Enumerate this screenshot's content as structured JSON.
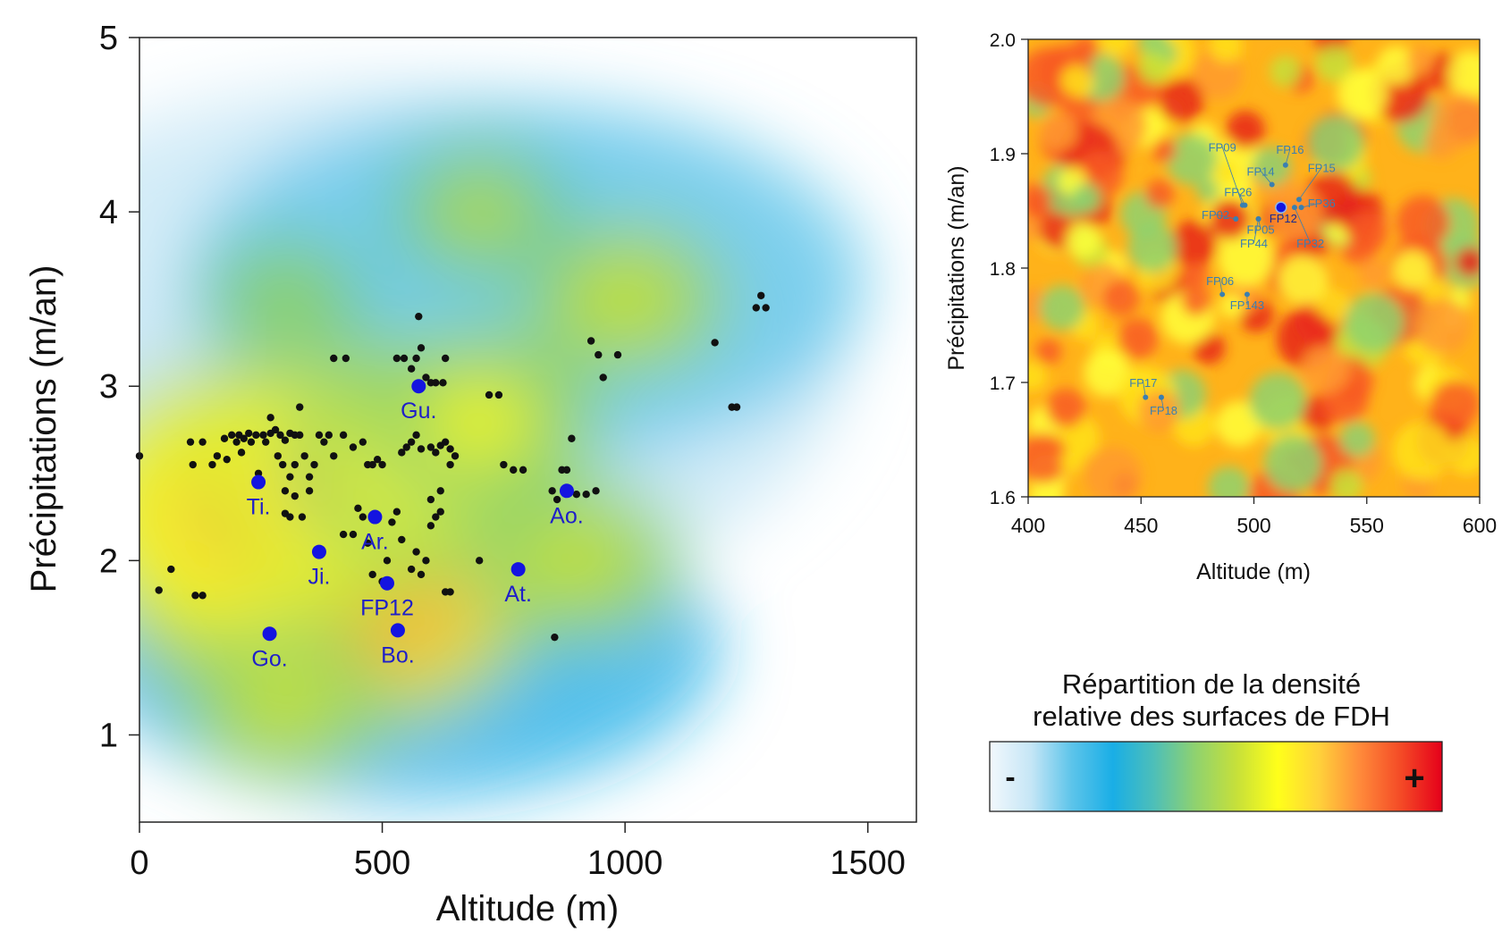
{
  "colors": {
    "density_scale": [
      "#f2f8fc",
      "#c6e6f6",
      "#5cc4ea",
      "#19aee6",
      "#4ebfb8",
      "#8fd26f",
      "#c6e03a",
      "#ffff1a",
      "#ffd23a",
      "#ff8a3a",
      "#f44a26",
      "#e5001a"
    ],
    "point_black": "#111111",
    "point_blue": "#1414e0",
    "label_blue": "#1f1fc8",
    "fp_label": "#3a7fb0",
    "fp12_label": "#1a2a90"
  },
  "legend": {
    "title_line1": "Répartition de la densité",
    "title_line2": "relative des surfaces de FDH",
    "min_label": "-",
    "max_label": "+"
  },
  "chart_data": [
    {
      "type": "heatmap",
      "panel": "main",
      "title": "",
      "xlabel": "Altitude (m)",
      "ylabel": "Précipitations (m/an)",
      "xlim": [
        0,
        1600
      ],
      "ylim": [
        0.5,
        5
      ],
      "xticks": [
        0,
        500,
        1000,
        1500
      ],
      "yticks": [
        1,
        2,
        3,
        4,
        5
      ],
      "density_hotspots": [
        {
          "x": 400,
          "y": 2.0,
          "weight": 1.0
        },
        {
          "x": 250,
          "y": 2.3,
          "weight": 0.8
        },
        {
          "x": 450,
          "y": 2.5,
          "weight": 0.7
        },
        {
          "x": 600,
          "y": 2.6,
          "weight": 0.6
        },
        {
          "x": 700,
          "y": 2.8,
          "weight": 0.4
        },
        {
          "x": 900,
          "y": 2.0,
          "weight": 0.3
        },
        {
          "x": 1000,
          "y": 3.5,
          "weight": 0.3
        },
        {
          "x": 700,
          "y": 4.0,
          "weight": 0.25
        },
        {
          "x": 300,
          "y": 3.5,
          "weight": 0.2
        },
        {
          "x": 300,
          "y": 1.2,
          "weight": 0.3
        }
      ],
      "sites": [
        {
          "label": "Gu.",
          "x": 575,
          "y": 3.0
        },
        {
          "label": "Ti.",
          "x": 245,
          "y": 2.45
        },
        {
          "label": "Ar.",
          "x": 485,
          "y": 2.25
        },
        {
          "label": "Ao.",
          "x": 880,
          "y": 2.4
        },
        {
          "label": "Ji.",
          "x": 370,
          "y": 2.05
        },
        {
          "label": "FP12",
          "x": 510,
          "y": 1.87
        },
        {
          "label": "At.",
          "x": 780,
          "y": 1.95
        },
        {
          "label": "Go.",
          "x": 268,
          "y": 1.58
        },
        {
          "label": "Bo.",
          "x": 532,
          "y": 1.6
        }
      ],
      "stations": [
        [
          0,
          2.6
        ],
        [
          40,
          1.83
        ],
        [
          65,
          1.95
        ],
        [
          105,
          2.68
        ],
        [
          110,
          2.55
        ],
        [
          115,
          1.8
        ],
        [
          130,
          1.8
        ],
        [
          130,
          2.68
        ],
        [
          150,
          2.55
        ],
        [
          160,
          2.6
        ],
        [
          175,
          2.7
        ],
        [
          180,
          2.58
        ],
        [
          190,
          2.72
        ],
        [
          200,
          2.68
        ],
        [
          205,
          2.72
        ],
        [
          210,
          2.62
        ],
        [
          215,
          2.7
        ],
        [
          225,
          2.73
        ],
        [
          230,
          2.68
        ],
        [
          240,
          2.72
        ],
        [
          245,
          2.5
        ],
        [
          255,
          2.72
        ],
        [
          260,
          2.68
        ],
        [
          270,
          2.73
        ],
        [
          280,
          2.75
        ],
        [
          290,
          2.72
        ],
        [
          300,
          2.69
        ],
        [
          310,
          2.73
        ],
        [
          320,
          2.72
        ],
        [
          330,
          2.72
        ],
        [
          270,
          2.82
        ],
        [
          285,
          2.6
        ],
        [
          295,
          2.55
        ],
        [
          300,
          2.4
        ],
        [
          310,
          2.48
        ],
        [
          320,
          2.55
        ],
        [
          330,
          2.88
        ],
        [
          340,
          2.6
        ],
        [
          350,
          2.48
        ],
        [
          360,
          2.55
        ],
        [
          300,
          2.27
        ],
        [
          310,
          2.25
        ],
        [
          320,
          2.37
        ],
        [
          335,
          2.25
        ],
        [
          350,
          2.4
        ],
        [
          370,
          2.72
        ],
        [
          380,
          2.68
        ],
        [
          390,
          2.72
        ],
        [
          400,
          2.6
        ],
        [
          420,
          2.72
        ],
        [
          440,
          2.65
        ],
        [
          460,
          2.68
        ],
        [
          470,
          2.55
        ],
        [
          480,
          2.55
        ],
        [
          490,
          2.58
        ],
        [
          500,
          2.55
        ],
        [
          400,
          3.16
        ],
        [
          425,
          3.16
        ],
        [
          420,
          2.15
        ],
        [
          440,
          2.15
        ],
        [
          450,
          2.3
        ],
        [
          460,
          2.25
        ],
        [
          470,
          2.1
        ],
        [
          480,
          1.92
        ],
        [
          500,
          1.88
        ],
        [
          510,
          2.0
        ],
        [
          520,
          2.22
        ],
        [
          530,
          2.28
        ],
        [
          540,
          2.12
        ],
        [
          560,
          1.95
        ],
        [
          570,
          2.05
        ],
        [
          580,
          1.92
        ],
        [
          590,
          2.0
        ],
        [
          600,
          2.2
        ],
        [
          610,
          2.25
        ],
        [
          620,
          2.28
        ],
        [
          630,
          1.82
        ],
        [
          640,
          1.82
        ],
        [
          540,
          2.62
        ],
        [
          550,
          2.65
        ],
        [
          560,
          2.68
        ],
        [
          570,
          2.72
        ],
        [
          580,
          2.64
        ],
        [
          600,
          2.65
        ],
        [
          610,
          2.62
        ],
        [
          620,
          2.66
        ],
        [
          630,
          2.68
        ],
        [
          640,
          2.64
        ],
        [
          530,
          3.16
        ],
        [
          545,
          3.16
        ],
        [
          560,
          3.1
        ],
        [
          570,
          3.16
        ],
        [
          575,
          3.4
        ],
        [
          580,
          3.22
        ],
        [
          590,
          3.05
        ],
        [
          600,
          3.02
        ],
        [
          610,
          3.02
        ],
        [
          625,
          3.02
        ],
        [
          630,
          3.16
        ],
        [
          640,
          2.55
        ],
        [
          650,
          2.6
        ],
        [
          620,
          2.4
        ],
        [
          600,
          2.35
        ],
        [
          700,
          2.0
        ],
        [
          720,
          2.95
        ],
        [
          740,
          2.95
        ],
        [
          750,
          2.55
        ],
        [
          770,
          2.52
        ],
        [
          790,
          2.52
        ],
        [
          850,
          2.4
        ],
        [
          860,
          2.35
        ],
        [
          870,
          2.52
        ],
        [
          880,
          2.52
        ],
        [
          890,
          2.7
        ],
        [
          900,
          2.38
        ],
        [
          920,
          2.38
        ],
        [
          940,
          2.4
        ],
        [
          855,
          1.56
        ],
        [
          930,
          3.26
        ],
        [
          945,
          3.18
        ],
        [
          955,
          3.05
        ],
        [
          985,
          3.18
        ],
        [
          1185,
          3.25
        ],
        [
          1220,
          2.88
        ],
        [
          1230,
          2.88
        ],
        [
          1270,
          3.45
        ],
        [
          1280,
          3.52
        ],
        [
          1290,
          3.45
        ]
      ]
    },
    {
      "type": "heatmap",
      "panel": "inset",
      "title": "",
      "xlabel": "Altitude (m)",
      "ylabel": "Précipitations (m/an)",
      "xlim": [
        400,
        600
      ],
      "ylim": [
        1.6,
        2.0
      ],
      "xticks": [
        400,
        450,
        500,
        550,
        600
      ],
      "yticks": [
        "1.6",
        "1.7",
        "1.8",
        "1.9",
        "2.0"
      ],
      "points": [
        {
          "label": "FP09",
          "x": 495,
          "y": 1.855,
          "lx": 486,
          "ly": 1.902
        },
        {
          "label": "FP16",
          "x": 514,
          "y": 1.89,
          "lx": 516,
          "ly": 1.9
        },
        {
          "label": "FP14",
          "x": 508,
          "y": 1.873,
          "lx": 503,
          "ly": 1.881
        },
        {
          "label": "FP15",
          "x": 520,
          "y": 1.86,
          "lx": 530,
          "ly": 1.884
        },
        {
          "label": "FP26",
          "x": 496,
          "y": 1.855,
          "lx": 493,
          "ly": 1.863
        },
        {
          "label": "FP36",
          "x": 521,
          "y": 1.853,
          "lx": 530,
          "ly": 1.853
        },
        {
          "label": "FP12",
          "x": 512,
          "y": 1.853,
          "lx": 513,
          "ly": 1.84,
          "highlight": true
        },
        {
          "label": "FP02",
          "x": 492,
          "y": 1.843,
          "lx": 483,
          "ly": 1.843
        },
        {
          "label": "FP05",
          "x": 502,
          "y": 1.843,
          "lx": 503,
          "ly": 1.83
        },
        {
          "label": "FP44",
          "x": 502,
          "y": 1.843,
          "lx": 500,
          "ly": 1.818
        },
        {
          "label": "FP32",
          "x": 518,
          "y": 1.853,
          "lx": 525,
          "ly": 1.818
        },
        {
          "label": "FP06",
          "x": 486,
          "y": 1.777,
          "lx": 485,
          "ly": 1.785
        },
        {
          "label": "FP143",
          "x": 497,
          "y": 1.777,
          "lx": 497,
          "ly": 1.764
        },
        {
          "label": "FP17",
          "x": 452,
          "y": 1.687,
          "lx": 451,
          "ly": 1.696
        },
        {
          "label": "FP18",
          "x": 459,
          "y": 1.687,
          "lx": 460,
          "ly": 1.672
        }
      ]
    }
  ]
}
